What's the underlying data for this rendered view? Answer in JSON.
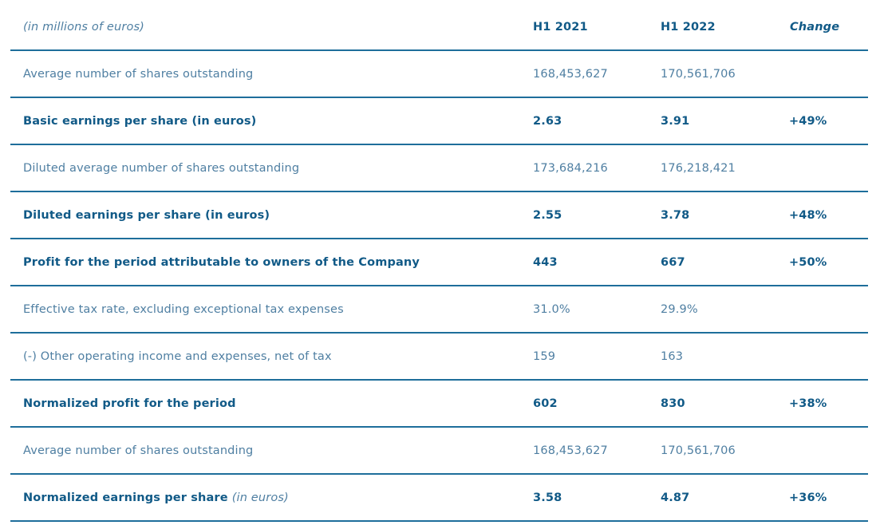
{
  "header": {
    "label": "(in millions of euros)",
    "col1": "H1 2021",
    "col2": "H1 2022",
    "col3": "Change"
  },
  "rows": [
    {
      "label": "Average number of shares outstanding",
      "h1_2021": "168,453,627",
      "h1_2022": "170,561,706",
      "change": "",
      "bold": false
    },
    {
      "label": "Basic earnings per share (in euros)",
      "h1_2021": "2.63",
      "h1_2022": "3.91",
      "change": "+49%",
      "bold": true
    },
    {
      "label": "Diluted average number of shares outstanding",
      "h1_2021": "173,684,216",
      "h1_2022": "176,218,421",
      "change": "",
      "bold": false
    },
    {
      "label": "Diluted earnings per share (in euros)",
      "h1_2021": "2.55",
      "h1_2022": "3.78",
      "change": "+48%",
      "bold": true
    },
    {
      "label": "Profit for the period attributable to owners of the Company",
      "h1_2021": "443",
      "h1_2022": "667",
      "change": "+50%",
      "bold": true
    },
    {
      "label": "Effective tax rate, excluding exceptional tax expenses",
      "h1_2021": "31.0%",
      "h1_2022": "29.9%",
      "change": "",
      "bold": false
    },
    {
      "label": "(-) Other operating income and expenses, net of tax",
      "h1_2021": "159",
      "h1_2022": "163",
      "change": "",
      "bold": false
    },
    {
      "label": "Normalized profit for the period",
      "h1_2021": "602",
      "h1_2022": "830",
      "change": "+38%",
      "bold": true
    },
    {
      "label": "Average number of shares outstanding",
      "h1_2021": "168,453,627",
      "h1_2022": "170,561,706",
      "change": "",
      "bold": false
    },
    {
      "label": "Normalized earnings per share",
      "label_suffix": "(in euros)",
      "h1_2021": "3.58",
      "h1_2022": "4.87",
      "change": "+36%",
      "bold": true
    }
  ]
}
